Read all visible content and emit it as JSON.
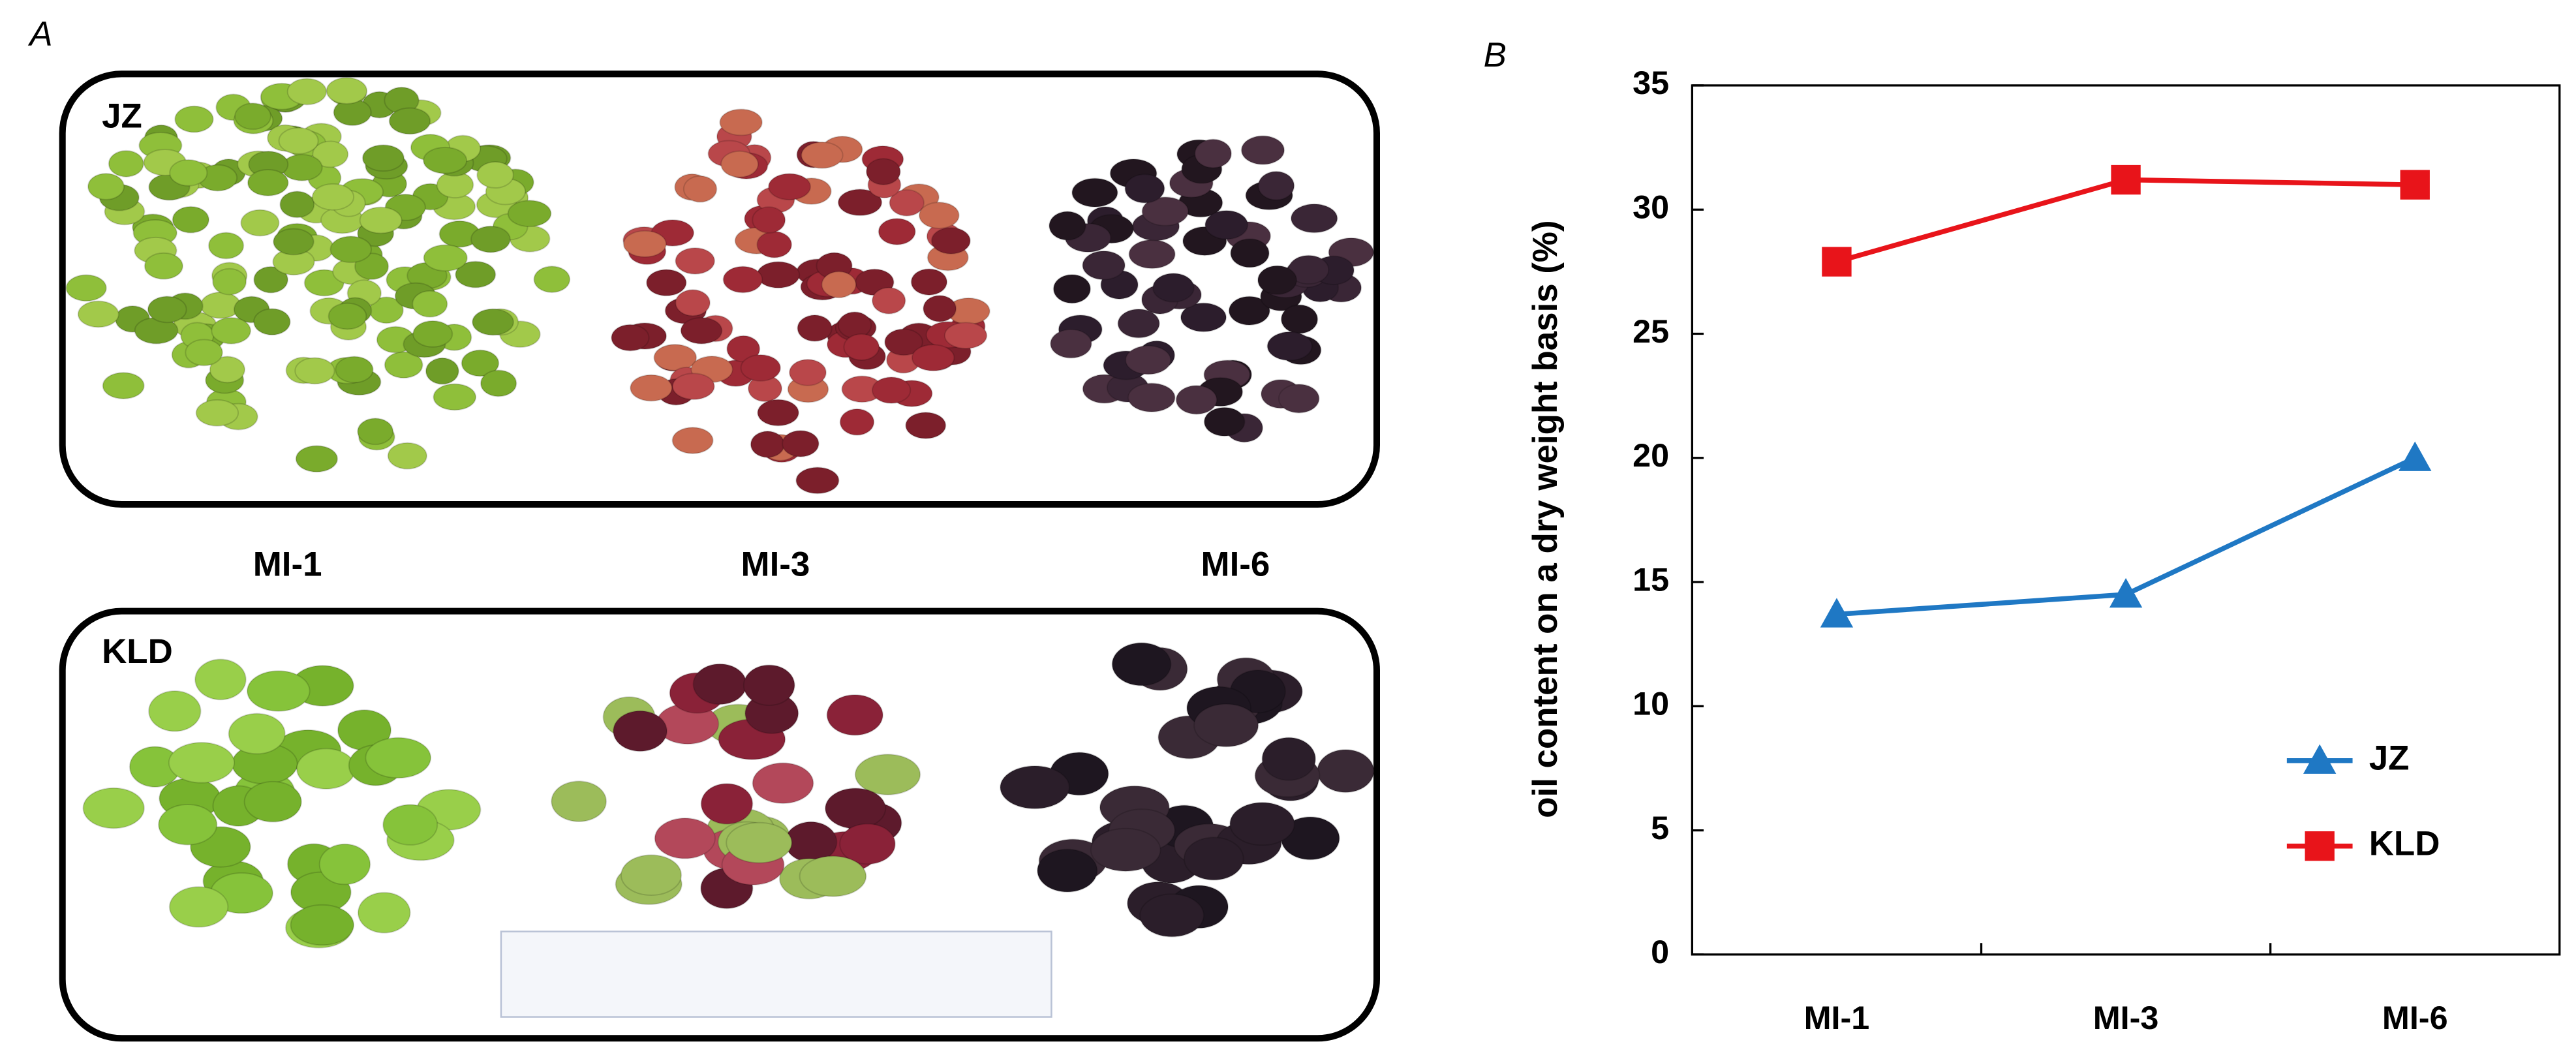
{
  "panel_a": {
    "label": "A",
    "groups": [
      "JZ",
      "KLD"
    ],
    "stages": [
      "MI-1",
      "MI-3",
      "MI-6"
    ]
  },
  "chart_data": {
    "type": "line",
    "panel_label": "B",
    "ylabel": "oil content on a dry weight basis (%)",
    "categories": [
      "MI-1",
      "MI-3",
      "MI-6"
    ],
    "series": [
      {
        "name": "JZ",
        "color": "#1f78c4",
        "marker": "triangle",
        "values": [
          13.7,
          14.5,
          20.0
        ]
      },
      {
        "name": "KLD",
        "color": "#e8141a",
        "marker": "square",
        "values": [
          27.9,
          31.2,
          31.0
        ]
      }
    ],
    "ylim": [
      0,
      35
    ],
    "yticks": [
      0,
      5,
      10,
      15,
      20,
      25,
      30,
      35
    ],
    "legend": "lower right",
    "grid": false
  }
}
